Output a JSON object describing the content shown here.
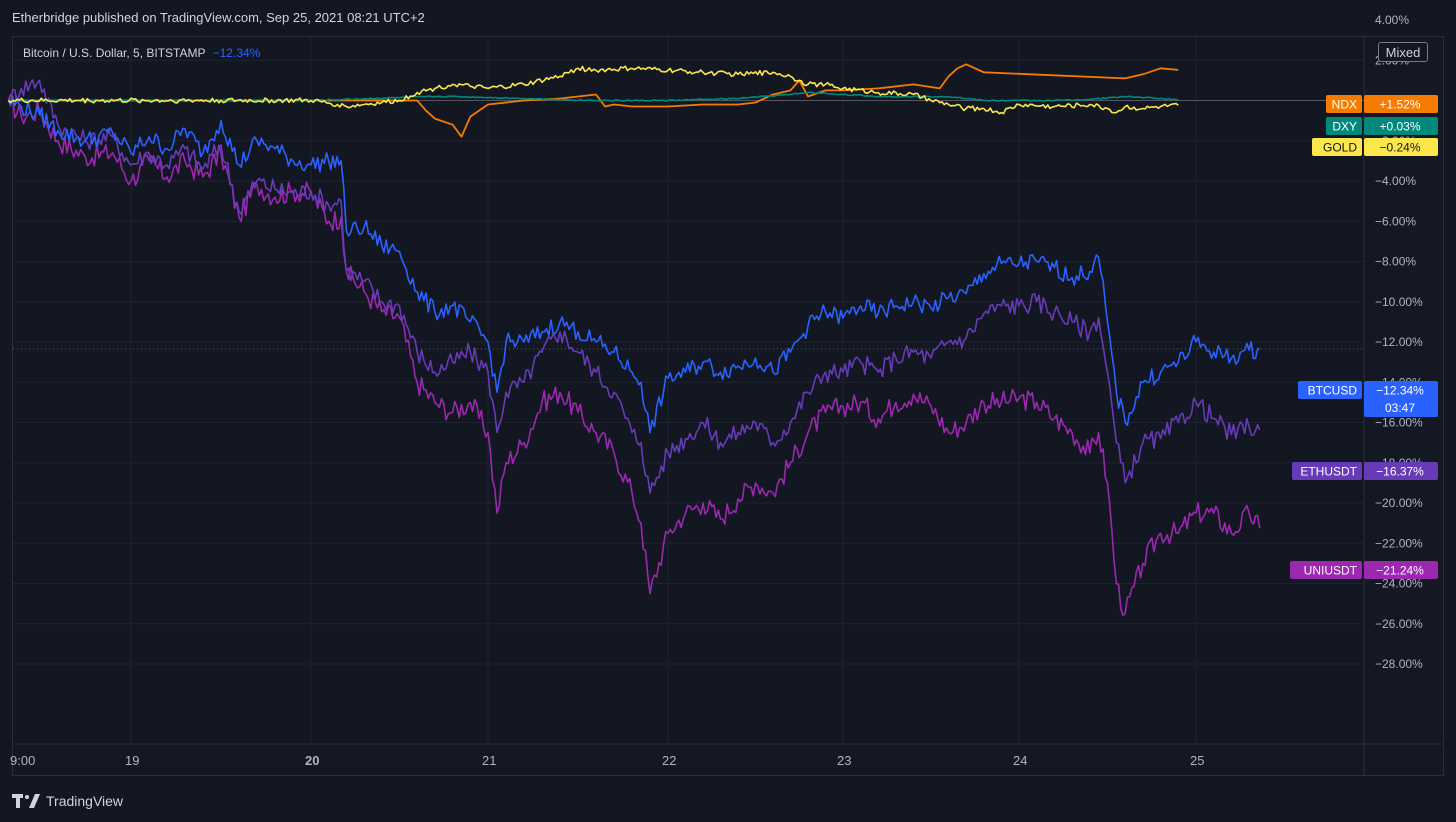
{
  "header": {
    "publisher_text": "Etherbridge published on TradingView.com, Sep 25, 2021 08:21 UTC+2"
  },
  "symbol_title": {
    "name": "Bitcoin / U.S. Dollar, 5, BITSTAMP",
    "change": "−12.34%"
  },
  "scale_mode_label": "Mixed",
  "footer": {
    "brand": "TradingView"
  },
  "colors": {
    "background": "#131722",
    "grid": "#1f2330",
    "btc": "#2962ff",
    "eth": "#673ab7",
    "uni": "#9c27b0",
    "ndx": "#f57c00",
    "dxy": "#00897b",
    "gold": "#fbe74b"
  },
  "chart_data": {
    "type": "line",
    "title": "Bitcoin / U.S. Dollar, 5, BITSTAMP",
    "x_ticks": [
      "9:00",
      "19",
      "20",
      "21",
      "22",
      "23",
      "24",
      "25"
    ],
    "bold_x_ticks": [
      "20"
    ],
    "y_ticks": [
      "4.00%",
      "2.00%",
      "0.00%",
      "−2.00%",
      "−4.00%",
      "−6.00%",
      "−8.00%",
      "−10.00%",
      "−12.00%",
      "−14.00%",
      "−16.00%",
      "−18.00%",
      "−20.00%",
      "−22.00%",
      "−24.00%",
      "−26.00%",
      "−28.00%"
    ],
    "y_tick_values": [
      4,
      2,
      0,
      -2,
      -4,
      -6,
      -8,
      -10,
      -12,
      -14,
      -16,
      -18,
      -20,
      -22,
      -24,
      -26,
      -28
    ],
    "ylim": [
      -30,
      5
    ],
    "grid": true,
    "series": [
      {
        "name": "BTCUSD",
        "label_value": "−12.34%",
        "countdown": "03:47",
        "color": "#2962ff",
        "x": [
          18.33,
          18.4,
          18.5,
          18.6,
          18.75,
          18.9,
          19.0,
          19.1,
          19.2,
          19.3,
          19.4,
          19.5,
          19.6,
          19.7,
          19.8,
          19.9,
          20.0,
          20.1,
          20.17,
          20.2,
          20.3,
          20.4,
          20.5,
          20.6,
          20.7,
          20.8,
          20.9,
          21.0,
          21.05,
          21.1,
          21.2,
          21.3,
          21.4,
          21.5,
          21.6,
          21.7,
          21.8,
          21.85,
          21.9,
          22.0,
          22.1,
          22.2,
          22.3,
          22.4,
          22.5,
          22.6,
          22.7,
          22.8,
          22.9,
          23.0,
          23.1,
          23.2,
          23.3,
          23.4,
          23.5,
          23.6,
          23.7,
          23.8,
          23.9,
          24.0,
          24.1,
          24.2,
          24.3,
          24.4,
          24.45,
          24.5,
          24.55,
          24.6,
          24.7,
          24.8,
          24.9,
          25.0,
          25.1,
          25.2,
          25.3,
          25.36
        ],
        "values": [
          0,
          -0.3,
          -0.7,
          -1.5,
          -2.0,
          -1.6,
          -2.6,
          -1.8,
          -2.4,
          -1.4,
          -2.6,
          -1.0,
          -3.2,
          -2.0,
          -2.4,
          -3.0,
          -3.2,
          -3.0,
          -3.0,
          -6.5,
          -6.3,
          -7.2,
          -7.5,
          -9.5,
          -10.5,
          -10.2,
          -11.0,
          -12.0,
          -14.5,
          -12.0,
          -12.0,
          -11.5,
          -11.0,
          -11.5,
          -12.0,
          -12.5,
          -13.5,
          -14.0,
          -16.5,
          -13.8,
          -13.5,
          -13.0,
          -13.5,
          -13.2,
          -12.8,
          -13.5,
          -12.5,
          -11.2,
          -10.5,
          -10.8,
          -10.2,
          -10.6,
          -10.2,
          -10.0,
          -10.3,
          -9.8,
          -9.6,
          -8.6,
          -8.1,
          -8.1,
          -8.0,
          -8.3,
          -8.8,
          -8.5,
          -7.8,
          -11.0,
          -14.5,
          -16.0,
          -14.0,
          -13.5,
          -13.0,
          -12.0,
          -12.5,
          -12.8,
          -12.4,
          -12.34
        ]
      },
      {
        "name": "ETHUSDT",
        "label_value": "−16.37%",
        "color": "#673ab7",
        "x": [
          18.33,
          18.4,
          18.5,
          18.6,
          18.75,
          18.9,
          19.0,
          19.1,
          19.2,
          19.3,
          19.4,
          19.5,
          19.6,
          19.7,
          19.8,
          19.9,
          20.0,
          20.1,
          20.17,
          20.2,
          20.3,
          20.4,
          20.5,
          20.6,
          20.7,
          20.8,
          20.9,
          21.0,
          21.05,
          21.1,
          21.2,
          21.3,
          21.4,
          21.5,
          21.6,
          21.7,
          21.8,
          21.85,
          21.9,
          22.0,
          22.1,
          22.2,
          22.3,
          22.4,
          22.5,
          22.6,
          22.7,
          22.8,
          22.9,
          23.0,
          23.1,
          23.2,
          23.3,
          23.4,
          23.5,
          23.6,
          23.7,
          23.8,
          23.9,
          24.0,
          24.1,
          24.2,
          24.3,
          24.4,
          24.45,
          24.5,
          24.55,
          24.6,
          24.7,
          24.8,
          24.9,
          25.0,
          25.1,
          25.2,
          25.3,
          25.36
        ],
        "values": [
          0,
          0.6,
          1.0,
          -1.2,
          -2.0,
          -1.8,
          -3.2,
          -2.6,
          -3.2,
          -2.4,
          -3.4,
          -2.2,
          -5.5,
          -4.0,
          -4.4,
          -4.6,
          -4.5,
          -5.2,
          -5.0,
          -8.5,
          -9.0,
          -10.0,
          -10.2,
          -12.5,
          -13.5,
          -13.0,
          -12.5,
          -13.5,
          -16.5,
          -14.5,
          -14.0,
          -12.5,
          -11.5,
          -12.5,
          -13.5,
          -14.5,
          -16.5,
          -17.0,
          -19.5,
          -17.5,
          -16.8,
          -16.0,
          -17.0,
          -16.5,
          -16.0,
          -17.0,
          -16.0,
          -14.5,
          -13.5,
          -13.5,
          -13.0,
          -13.5,
          -12.8,
          -12.5,
          -12.8,
          -12.0,
          -11.8,
          -10.6,
          -10.2,
          -10.2,
          -10.0,
          -10.5,
          -11.0,
          -11.5,
          -10.8,
          -13.5,
          -17.0,
          -19.0,
          -17.0,
          -16.8,
          -16.0,
          -15.0,
          -15.8,
          -16.6,
          -16.2,
          -16.37
        ]
      },
      {
        "name": "UNIUSDT",
        "label_value": "−21.24%",
        "color": "#9c27b0",
        "x": [
          18.33,
          18.4,
          18.5,
          18.6,
          18.75,
          18.9,
          19.0,
          19.1,
          19.2,
          19.3,
          19.4,
          19.5,
          19.6,
          19.7,
          19.8,
          19.9,
          20.0,
          20.1,
          20.17,
          20.2,
          20.3,
          20.4,
          20.5,
          20.6,
          20.7,
          20.8,
          20.9,
          21.0,
          21.05,
          21.1,
          21.2,
          21.3,
          21.4,
          21.5,
          21.6,
          21.7,
          21.8,
          21.85,
          21.9,
          22.0,
          22.1,
          22.2,
          22.3,
          22.4,
          22.5,
          22.6,
          22.7,
          22.8,
          22.9,
          23.0,
          23.1,
          23.2,
          23.3,
          23.4,
          23.5,
          23.6,
          23.7,
          23.8,
          23.9,
          24.0,
          24.1,
          24.2,
          24.3,
          24.4,
          24.45,
          24.5,
          24.55,
          24.6,
          24.7,
          24.8,
          24.9,
          25.0,
          25.1,
          25.2,
          25.3,
          25.36
        ],
        "values": [
          0,
          -0.8,
          -0.5,
          -2.0,
          -2.8,
          -2.6,
          -4.0,
          -3.0,
          -3.8,
          -3.0,
          -3.8,
          -2.6,
          -5.8,
          -4.2,
          -4.8,
          -4.5,
          -4.6,
          -6.0,
          -5.8,
          -8.5,
          -9.5,
          -10.5,
          -10.8,
          -14.0,
          -15.0,
          -15.5,
          -15.0,
          -16.5,
          -20.5,
          -18.0,
          -17.0,
          -15.0,
          -14.5,
          -15.5,
          -16.5,
          -17.5,
          -19.5,
          -21.0,
          -24.5,
          -21.5,
          -20.5,
          -20.0,
          -20.8,
          -19.8,
          -19.0,
          -19.5,
          -18.0,
          -16.5,
          -15.5,
          -15.2,
          -15.0,
          -15.8,
          -15.0,
          -14.6,
          -15.2,
          -16.5,
          -16.0,
          -15.0,
          -15.0,
          -14.8,
          -15.0,
          -15.8,
          -16.5,
          -17.5,
          -16.5,
          -19.0,
          -24.0,
          -25.5,
          -23.0,
          -21.5,
          -21.5,
          -20.5,
          -20.5,
          -21.5,
          -20.5,
          -21.24
        ]
      },
      {
        "name": "NDX",
        "label_value": "+1.52%",
        "color": "#f57c00",
        "x": [
          18.33,
          20.6,
          20.65,
          20.7,
          20.8,
          20.85,
          20.9,
          21.0,
          21.2,
          21.4,
          21.6,
          21.65,
          21.7,
          21.8,
          22.0,
          22.2,
          22.4,
          22.5,
          22.6,
          22.7,
          22.75,
          22.8,
          22.9,
          23.0,
          23.2,
          23.4,
          23.55,
          23.6,
          23.65,
          23.7,
          23.8,
          24.6,
          24.7,
          24.8,
          24.9
        ],
        "values": [
          0,
          0,
          -0.5,
          -0.9,
          -1.2,
          -1.8,
          -0.8,
          -0.2,
          0,
          0.1,
          0.3,
          -0.3,
          -0.2,
          -0.3,
          -0.3,
          -0.2,
          -0.2,
          -0.1,
          0.3,
          0.5,
          1.0,
          0.2,
          0.5,
          0.5,
          0.6,
          0.8,
          0.6,
          1.2,
          1.6,
          1.8,
          1.4,
          1.1,
          1.3,
          1.6,
          1.52
        ]
      },
      {
        "name": "DXY",
        "label_value": "+0.03%",
        "color": "#00897b",
        "x": [
          18.33,
          20.0,
          20.7,
          20.8,
          21.2,
          21.6,
          22.0,
          22.4,
          22.7,
          22.8,
          23.0,
          23.2,
          23.4,
          23.6,
          23.8,
          24.0,
          24.2,
          24.4,
          24.6,
          24.8,
          24.9
        ],
        "values": [
          0,
          0,
          0.2,
          0.2,
          0.1,
          0.0,
          0.0,
          0.1,
          0.3,
          0.4,
          0.3,
          0.2,
          0.2,
          0.2,
          0.0,
          0.0,
          0.0,
          0.05,
          0.2,
          0.1,
          0.03
        ]
      },
      {
        "name": "GOLD",
        "label_value": "−0.24%",
        "color": "#fbe74b",
        "x": [
          18.33,
          20.0,
          20.15,
          20.2,
          20.3,
          20.4,
          20.5,
          20.6,
          20.7,
          20.8,
          20.9,
          21.0,
          21.2,
          21.4,
          21.5,
          21.6,
          21.8,
          22.0,
          22.2,
          22.4,
          22.6,
          22.7,
          22.75,
          22.8,
          22.9,
          23.0,
          23.2,
          23.4,
          23.5,
          23.6,
          23.7,
          23.8,
          23.9,
          24.0,
          24.2,
          24.4,
          24.5,
          24.55,
          24.6,
          24.7,
          24.8,
          24.9
        ],
        "values": [
          0,
          0,
          -0.2,
          -0.3,
          -0.2,
          -0.1,
          0.0,
          0.4,
          0.6,
          0.8,
          0.7,
          0.6,
          0.8,
          1.2,
          1.6,
          1.5,
          1.6,
          1.5,
          1.4,
          1.3,
          1.4,
          1.2,
          1.0,
          0.8,
          0.8,
          0.6,
          0.4,
          0.3,
          0.0,
          -0.2,
          -0.4,
          -0.4,
          -0.6,
          -0.2,
          -0.3,
          -0.2,
          -0.4,
          -0.6,
          -0.3,
          -0.4,
          -0.3,
          -0.24
        ]
      }
    ],
    "price_line": {
      "series": "BTCUSD",
      "value": -12.34
    }
  }
}
